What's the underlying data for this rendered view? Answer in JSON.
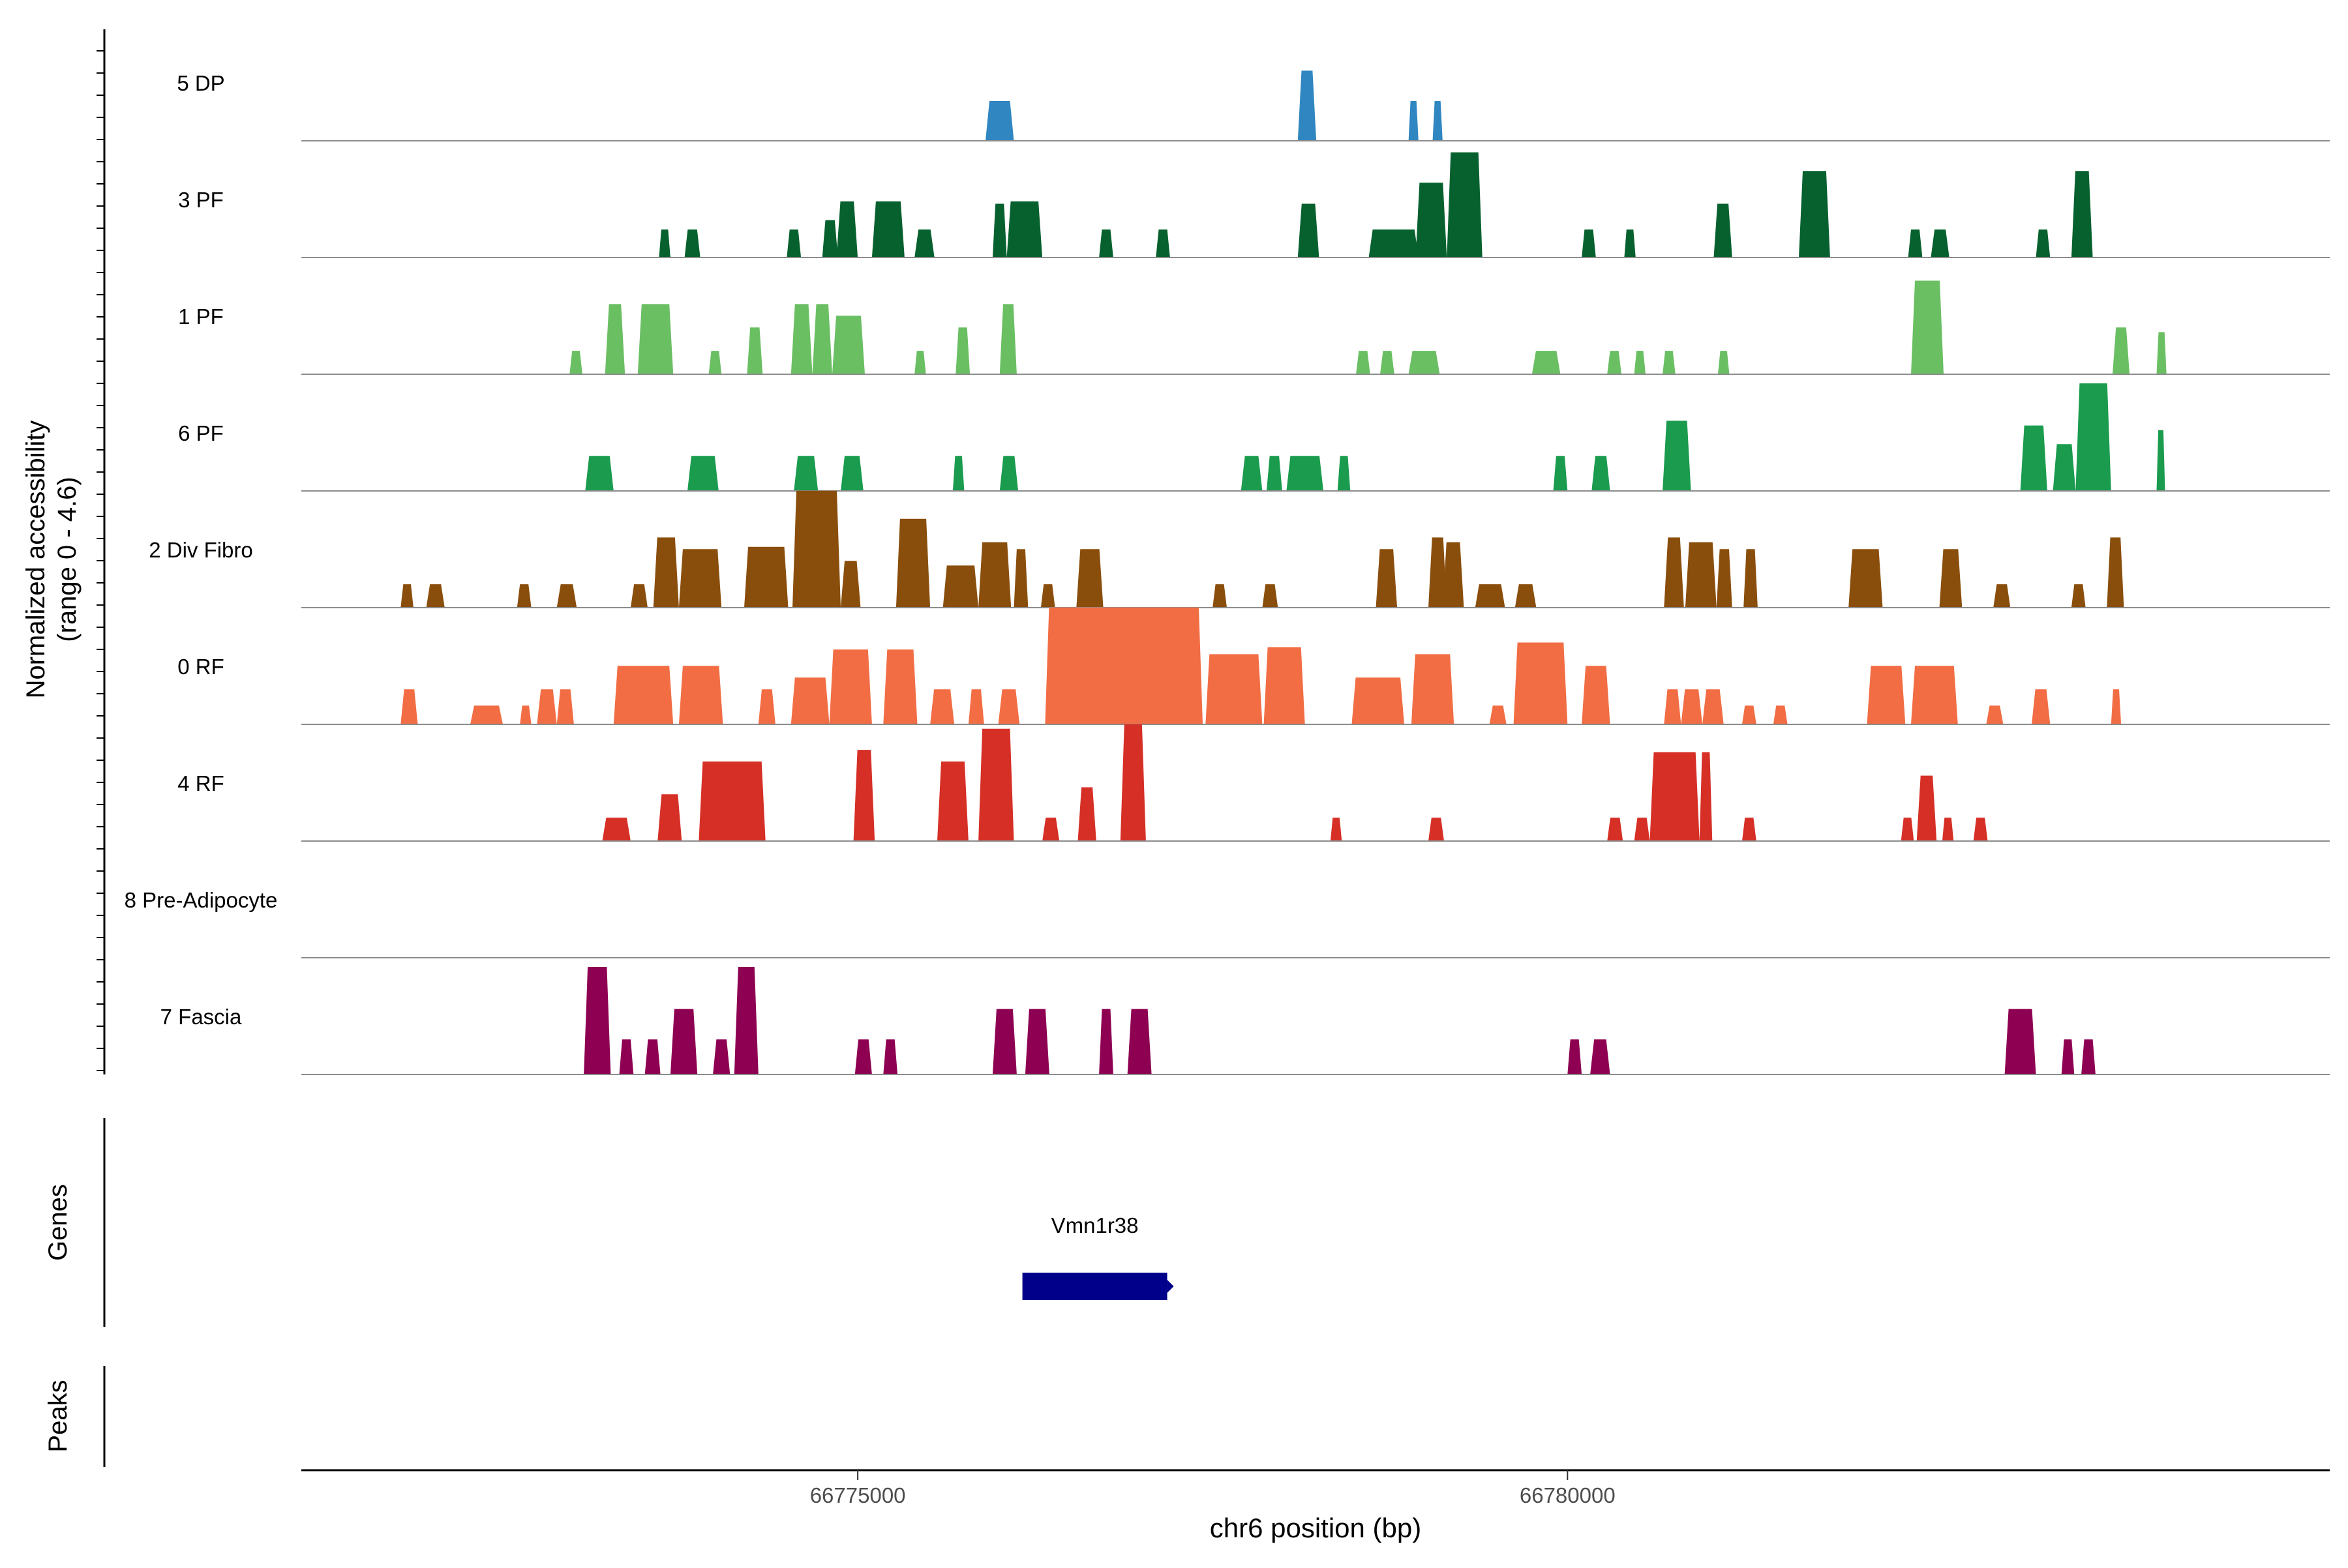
{
  "chart_data": {
    "type": "area",
    "title": "",
    "ylabel_line1": "Normalized accessibility",
    "ylabel_line2": "(range 0 - 4.6)",
    "genes_label": "Genes",
    "peaks_label": "Peaks",
    "xlabel": "chr6 position (bp)",
    "xlim": [
      66771080,
      66785370
    ],
    "ylim": [
      0,
      4.6
    ],
    "xticks": [
      {
        "value": 66775000,
        "label": "66775000"
      },
      {
        "value": 66780000,
        "label": "66780000"
      }
    ],
    "tracks": [
      {
        "name": "5 DP",
        "color": "#2f86c0",
        "peaks": [
          [
            66775900,
            66776100,
            1.7
          ],
          [
            66778100,
            66778230,
            3.0
          ],
          [
            66778880,
            66778950,
            1.7
          ],
          [
            66779050,
            66779120,
            1.7
          ]
        ]
      },
      {
        "name": "3 PF",
        "color": "#07612e",
        "peaks": [
          [
            66773600,
            66773680,
            1.2
          ],
          [
            66773780,
            66773890,
            1.2
          ],
          [
            66774500,
            66774600,
            1.2
          ],
          [
            66774750,
            66774860,
            1.6
          ],
          [
            66774850,
            66775000,
            2.4
          ],
          [
            66775100,
            66775330,
            2.4
          ],
          [
            66775400,
            66775540,
            1.2
          ],
          [
            66775950,
            66776050,
            2.3
          ],
          [
            66776050,
            66776300,
            2.4
          ],
          [
            66776700,
            66776800,
            1.2
          ],
          [
            66777100,
            66777200,
            1.2
          ],
          [
            66778100,
            66778250,
            2.3
          ],
          [
            66778600,
            66778950,
            1.2
          ],
          [
            66778930,
            66779150,
            3.2
          ],
          [
            66779150,
            66779400,
            4.5
          ],
          [
            66780100,
            66780200,
            1.2
          ],
          [
            66780400,
            66780480,
            1.2
          ],
          [
            66781030,
            66781160,
            2.3
          ],
          [
            66781630,
            66781850,
            3.7
          ],
          [
            66782400,
            66782500,
            1.2
          ],
          [
            66782560,
            66782690,
            1.2
          ],
          [
            66783300,
            66783400,
            1.2
          ],
          [
            66783550,
            66783700,
            3.7
          ]
        ]
      },
      {
        "name": "1 PF",
        "color": "#6abf63",
        "peaks": [
          [
            66772970,
            66773060,
            1.0
          ],
          [
            66773220,
            66773360,
            3.0
          ],
          [
            66773450,
            66773700,
            3.0
          ],
          [
            66773950,
            66774040,
            1.0
          ],
          [
            66774220,
            66774330,
            2.0
          ],
          [
            66774530,
            66774680,
            3.0
          ],
          [
            66774680,
            66774820,
            3.0
          ],
          [
            66774820,
            66775050,
            2.5
          ],
          [
            66775400,
            66775480,
            1.0
          ],
          [
            66775690,
            66775790,
            2.0
          ],
          [
            66776000,
            66776120,
            3.0
          ],
          [
            66778510,
            66778610,
            1.0
          ],
          [
            66778680,
            66778780,
            1.0
          ],
          [
            66778880,
            66779100,
            1.0
          ],
          [
            66779750,
            66779950,
            1.0
          ],
          [
            66780280,
            66780380,
            1.0
          ],
          [
            66780470,
            66780550,
            1.0
          ],
          [
            66780670,
            66780760,
            1.0
          ],
          [
            66781060,
            66781140,
            1.0
          ],
          [
            66782420,
            66782650,
            4.0
          ],
          [
            66783840,
            66783960,
            2.0
          ],
          [
            66784150,
            66784220,
            1.8
          ]
        ]
      },
      {
        "name": "6 PF",
        "color": "#1a9b4e",
        "peaks": [
          [
            66773080,
            66773280,
            1.5
          ],
          [
            66773800,
            66774020,
            1.5
          ],
          [
            66774550,
            66774720,
            1.5
          ],
          [
            66774880,
            66775040,
            1.5
          ],
          [
            66775670,
            66775750,
            1.5
          ],
          [
            66776000,
            66776130,
            1.5
          ],
          [
            66777700,
            66777850,
            1.5
          ],
          [
            66777880,
            66777990,
            1.5
          ],
          [
            66778020,
            66778280,
            1.5
          ],
          [
            66778380,
            66778470,
            1.5
          ],
          [
            66779900,
            66780000,
            1.5
          ],
          [
            66780170,
            66780300,
            1.5
          ],
          [
            66780670,
            66780870,
            3.0
          ],
          [
            66783190,
            66783380,
            2.8
          ],
          [
            66783420,
            66783580,
            2.0
          ],
          [
            66783580,
            66783830,
            4.6
          ],
          [
            66784150,
            66784210,
            2.6
          ]
        ]
      },
      {
        "name": "2 Div Fibro",
        "color": "#8a4e0c",
        "peaks": [
          [
            66771780,
            66771870,
            1.0
          ],
          [
            66771960,
            66772090,
            1.0
          ],
          [
            66772600,
            66772700,
            1.0
          ],
          [
            66772880,
            66773020,
            1.0
          ],
          [
            66773400,
            66773520,
            1.0
          ],
          [
            66773560,
            66773740,
            3.0
          ],
          [
            66773740,
            66774040,
            2.5
          ],
          [
            66774200,
            66774510,
            2.6
          ],
          [
            66774540,
            66774880,
            5.0
          ],
          [
            66774880,
            66775020,
            2.0
          ],
          [
            66775270,
            66775510,
            3.8
          ],
          [
            66775600,
            66775850,
            1.8
          ],
          [
            66775850,
            66776080,
            2.8
          ],
          [
            66776100,
            66776200,
            2.5
          ],
          [
            66776290,
            66776390,
            1.0
          ],
          [
            66776540,
            66776730,
            2.5
          ],
          [
            66777500,
            66777600,
            1.0
          ],
          [
            66777850,
            66777960,
            1.0
          ],
          [
            66778650,
            66778800,
            2.5
          ],
          [
            66779020,
            66779150,
            3.0
          ],
          [
            66779120,
            66779270,
            2.8
          ],
          [
            66779350,
            66779560,
            1.0
          ],
          [
            66779630,
            66779780,
            1.0
          ],
          [
            66780680,
            66780820,
            3.0
          ],
          [
            66780830,
            66781050,
            2.8
          ],
          [
            66781050,
            66781160,
            2.5
          ],
          [
            66781240,
            66781340,
            2.5
          ],
          [
            66781980,
            66782220,
            2.5
          ],
          [
            66782620,
            66782780,
            2.5
          ],
          [
            66783000,
            66783120,
            1.0
          ],
          [
            66783550,
            66783650,
            1.0
          ],
          [
            66783800,
            66783920,
            3.0
          ]
        ]
      },
      {
        "name": "0 RF",
        "color": "#f26d44",
        "peaks": [
          [
            66771780,
            66771900,
            1.5
          ],
          [
            66772270,
            66772500,
            0.8
          ],
          [
            66772620,
            66772700,
            0.8
          ],
          [
            66772740,
            66772880,
            1.5
          ],
          [
            66772880,
            66773000,
            1.5
          ],
          [
            66773280,
            66773700,
            2.5
          ],
          [
            66773740,
            66774050,
            2.5
          ],
          [
            66774300,
            66774420,
            1.5
          ],
          [
            66774530,
            66774800,
            2.0
          ],
          [
            66774800,
            66775100,
            3.2
          ],
          [
            66775180,
            66775420,
            3.2
          ],
          [
            66775510,
            66775680,
            1.5
          ],
          [
            66775780,
            66775890,
            1.5
          ],
          [
            66775990,
            66776140,
            1.5
          ],
          [
            66776320,
            66777430,
            5.0
          ],
          [
            66777450,
            66777850,
            3.0
          ],
          [
            66777860,
            66778150,
            3.3
          ],
          [
            66778480,
            66778850,
            2.0
          ],
          [
            66778900,
            66779200,
            3.0
          ],
          [
            66779450,
            66779570,
            0.8
          ],
          [
            66779620,
            66780000,
            3.5
          ],
          [
            66780100,
            66780300,
            2.5
          ],
          [
            66780680,
            66780800,
            1.5
          ],
          [
            66780800,
            66780950,
            1.5
          ],
          [
            66780950,
            66781100,
            1.5
          ],
          [
            66781230,
            66781330,
            0.8
          ],
          [
            66781450,
            66781550,
            0.8
          ],
          [
            66782110,
            66782380,
            2.5
          ],
          [
            66782420,
            66782750,
            2.5
          ],
          [
            66782950,
            66783070,
            0.8
          ],
          [
            66783270,
            66783400,
            1.5
          ],
          [
            66783830,
            66783900,
            1.5
          ]
        ]
      },
      {
        "name": "4 RF",
        "color": "#d62f26",
        "peaks": [
          [
            66773200,
            66773400,
            1.0
          ],
          [
            66773590,
            66773760,
            2.0
          ],
          [
            66773880,
            66774350,
            3.4
          ],
          [
            66774970,
            66775120,
            3.9
          ],
          [
            66775560,
            66775780,
            3.4
          ],
          [
            66775850,
            66776100,
            4.8
          ],
          [
            66776300,
            66776420,
            1.0
          ],
          [
            66776550,
            66776680,
            2.3
          ],
          [
            66776850,
            66777030,
            5.0
          ],
          [
            66778330,
            66778410,
            1.0
          ],
          [
            66779020,
            66779130,
            1.0
          ],
          [
            66780280,
            66780390,
            1.0
          ],
          [
            66780470,
            66780580,
            1.0
          ],
          [
            66780580,
            66780930,
            3.8
          ],
          [
            66780930,
            66781020,
            3.8
          ],
          [
            66781230,
            66781330,
            1.0
          ],
          [
            66782350,
            66782440,
            1.0
          ],
          [
            66782460,
            66782600,
            2.8
          ],
          [
            66782640,
            66782720,
            1.0
          ],
          [
            66782860,
            66782960,
            1.0
          ]
        ]
      },
      {
        "name": "8 Pre-Adipocyte",
        "color": "#7f2ea1",
        "peaks": []
      },
      {
        "name": "7 Fascia",
        "color": "#8e0152",
        "peaks": [
          [
            66773070,
            66773260,
            4.6
          ],
          [
            66773320,
            66773420,
            1.5
          ],
          [
            66773500,
            66773610,
            1.5
          ],
          [
            66773680,
            66773870,
            2.8
          ],
          [
            66773980,
            66774100,
            1.5
          ],
          [
            66774130,
            66774300,
            4.6
          ],
          [
            66774980,
            66775100,
            1.5
          ],
          [
            66775180,
            66775280,
            1.5
          ],
          [
            66775950,
            66776120,
            2.8
          ],
          [
            66776180,
            66776350,
            2.8
          ],
          [
            66776700,
            66776800,
            2.8
          ],
          [
            66776900,
            66777070,
            2.8
          ],
          [
            66780000,
            66780100,
            1.5
          ],
          [
            66780160,
            66780300,
            1.5
          ],
          [
            66783080,
            66783300,
            2.8
          ],
          [
            66783480,
            66783570,
            1.5
          ],
          [
            66783620,
            66783720,
            1.5
          ]
        ]
      }
    ],
    "genes": [
      {
        "name": "Vmn1r38",
        "start": 66776160,
        "end": 66777180,
        "color": "#00008b"
      }
    ],
    "peaks_track": []
  }
}
